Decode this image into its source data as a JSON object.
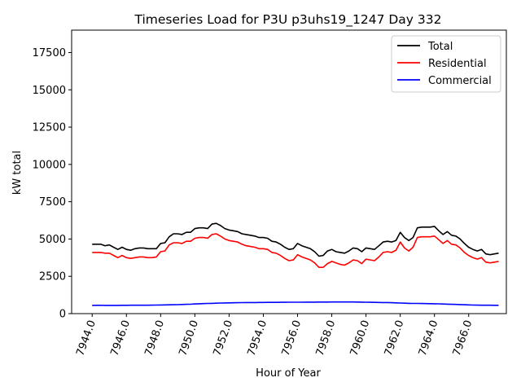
{
  "chart_data": {
    "type": "line",
    "title": "Timeseries Load for P3U p3uhs19_1247  Day 332",
    "xlabel": "Hour of Year",
    "ylabel": "kW total",
    "xlim": [
      7942.8,
      7968.2
    ],
    "ylim": [
      0,
      19000
    ],
    "x_ticks": [
      7944.0,
      7946.0,
      7948.0,
      7950.0,
      7952.0,
      7954.0,
      7956.0,
      7958.0,
      7960.0,
      7962.0,
      7964.0,
      7966.0
    ],
    "x_tick_labels": [
      "7944.0",
      "7946.0",
      "7948.0",
      "7950.0",
      "7952.0",
      "7954.0",
      "7956.0",
      "7958.0",
      "7960.0",
      "7962.0",
      "7964.0",
      "7966.0"
    ],
    "y_ticks": [
      0,
      2500,
      5000,
      7500,
      10000,
      12500,
      15000,
      17500
    ],
    "y_tick_labels": [
      "0",
      "2500",
      "5000",
      "7500",
      "10000",
      "12500",
      "15000",
      "17500"
    ],
    "grid": false,
    "legend": "top-right",
    "x": [
      7944.0,
      7944.25,
      7944.5,
      7944.75,
      7945.0,
      7945.25,
      7945.5,
      7945.75,
      7946.0,
      7946.25,
      7946.5,
      7946.75,
      7947.0,
      7947.25,
      7947.5,
      7947.75,
      7948.0,
      7948.25,
      7948.5,
      7948.75,
      7949.0,
      7949.25,
      7949.5,
      7949.75,
      7950.0,
      7950.25,
      7950.5,
      7950.75,
      7951.0,
      7951.25,
      7951.5,
      7951.75,
      7952.0,
      7952.25,
      7952.5,
      7952.75,
      7953.0,
      7953.25,
      7953.5,
      7953.75,
      7954.0,
      7954.25,
      7954.5,
      7954.75,
      7955.0,
      7955.25,
      7955.5,
      7955.75,
      7956.0,
      7956.25,
      7956.5,
      7956.75,
      7957.0,
      7957.25,
      7957.5,
      7957.75,
      7958.0,
      7958.25,
      7958.5,
      7958.75,
      7959.0,
      7959.25,
      7959.5,
      7959.75,
      7960.0,
      7960.25,
      7960.5,
      7960.75,
      7961.0,
      7961.25,
      7961.5,
      7961.75,
      7962.0,
      7962.25,
      7962.5,
      7962.75,
      7963.0,
      7963.25,
      7963.5,
      7963.75,
      7964.0,
      7964.25,
      7964.5,
      7964.75,
      7965.0,
      7965.25,
      7965.5,
      7965.75,
      7966.0,
      7966.25,
      7966.5,
      7966.75,
      7967.0,
      7967.25,
      7967.5,
      7967.75
    ],
    "series": [
      {
        "name": "Total",
        "color": "#000000",
        "values": [
          4650,
          4650,
          4650,
          4550,
          4600,
          4450,
          4300,
          4450,
          4300,
          4250,
          4350,
          4400,
          4400,
          4350,
          4350,
          4350,
          4700,
          4750,
          5150,
          5350,
          5350,
          5300,
          5450,
          5450,
          5700,
          5750,
          5750,
          5700,
          6000,
          6050,
          5900,
          5700,
          5600,
          5550,
          5500,
          5350,
          5300,
          5250,
          5200,
          5100,
          5100,
          5050,
          4850,
          4800,
          4650,
          4450,
          4300,
          4350,
          4700,
          4550,
          4450,
          4350,
          4150,
          3850,
          3900,
          4200,
          4300,
          4150,
          4100,
          4050,
          4200,
          4400,
          4350,
          4150,
          4400,
          4350,
          4300,
          4550,
          4800,
          4850,
          4800,
          4900,
          5450,
          5100,
          4900,
          5100,
          5750,
          5800,
          5800,
          5800,
          5850,
          5550,
          5300,
          5500,
          5250,
          5200,
          5000,
          4700,
          4450,
          4300,
          4200,
          4300,
          4000,
          3950,
          4000,
          4050
        ]
      },
      {
        "name": "Residential",
        "color": "#ff0000",
        "values": [
          4100,
          4100,
          4100,
          4050,
          4050,
          3900,
          3750,
          3900,
          3750,
          3700,
          3750,
          3800,
          3800,
          3750,
          3750,
          3800,
          4150,
          4200,
          4600,
          4750,
          4750,
          4700,
          4850,
          4850,
          5050,
          5100,
          5100,
          5050,
          5300,
          5350,
          5200,
          5000,
          4900,
          4850,
          4800,
          4650,
          4550,
          4500,
          4450,
          4350,
          4350,
          4300,
          4100,
          4050,
          3900,
          3700,
          3550,
          3600,
          3950,
          3800,
          3700,
          3600,
          3400,
          3100,
          3100,
          3350,
          3500,
          3400,
          3300,
          3250,
          3400,
          3600,
          3550,
          3350,
          3650,
          3600,
          3550,
          3800,
          4100,
          4150,
          4100,
          4250,
          4800,
          4400,
          4200,
          4450,
          5100,
          5150,
          5150,
          5150,
          5200,
          4950,
          4700,
          4900,
          4650,
          4600,
          4400,
          4100,
          3900,
          3750,
          3650,
          3750,
          3450,
          3400,
          3450,
          3500
        ]
      },
      {
        "name": "Commercial",
        "color": "#0000ff",
        "values": [
          550,
          555,
          555,
          550,
          550,
          550,
          550,
          555,
          555,
          560,
          560,
          560,
          565,
          565,
          570,
          575,
          580,
          585,
          590,
          595,
          600,
          610,
          620,
          630,
          650,
          660,
          670,
          680,
          690,
          700,
          710,
          715,
          720,
          725,
          730,
          735,
          740,
          745,
          745,
          750,
          750,
          752,
          754,
          756,
          758,
          760,
          762,
          764,
          765,
          766,
          768,
          770,
          772,
          774,
          776,
          778,
          780,
          780,
          780,
          780,
          780,
          780,
          775,
          770,
          765,
          760,
          755,
          750,
          745,
          740,
          730,
          720,
          710,
          700,
          690,
          685,
          680,
          675,
          670,
          665,
          660,
          655,
          645,
          635,
          625,
          615,
          605,
          595,
          585,
          575,
          570,
          565,
          560,
          560,
          555,
          555
        ]
      }
    ]
  }
}
